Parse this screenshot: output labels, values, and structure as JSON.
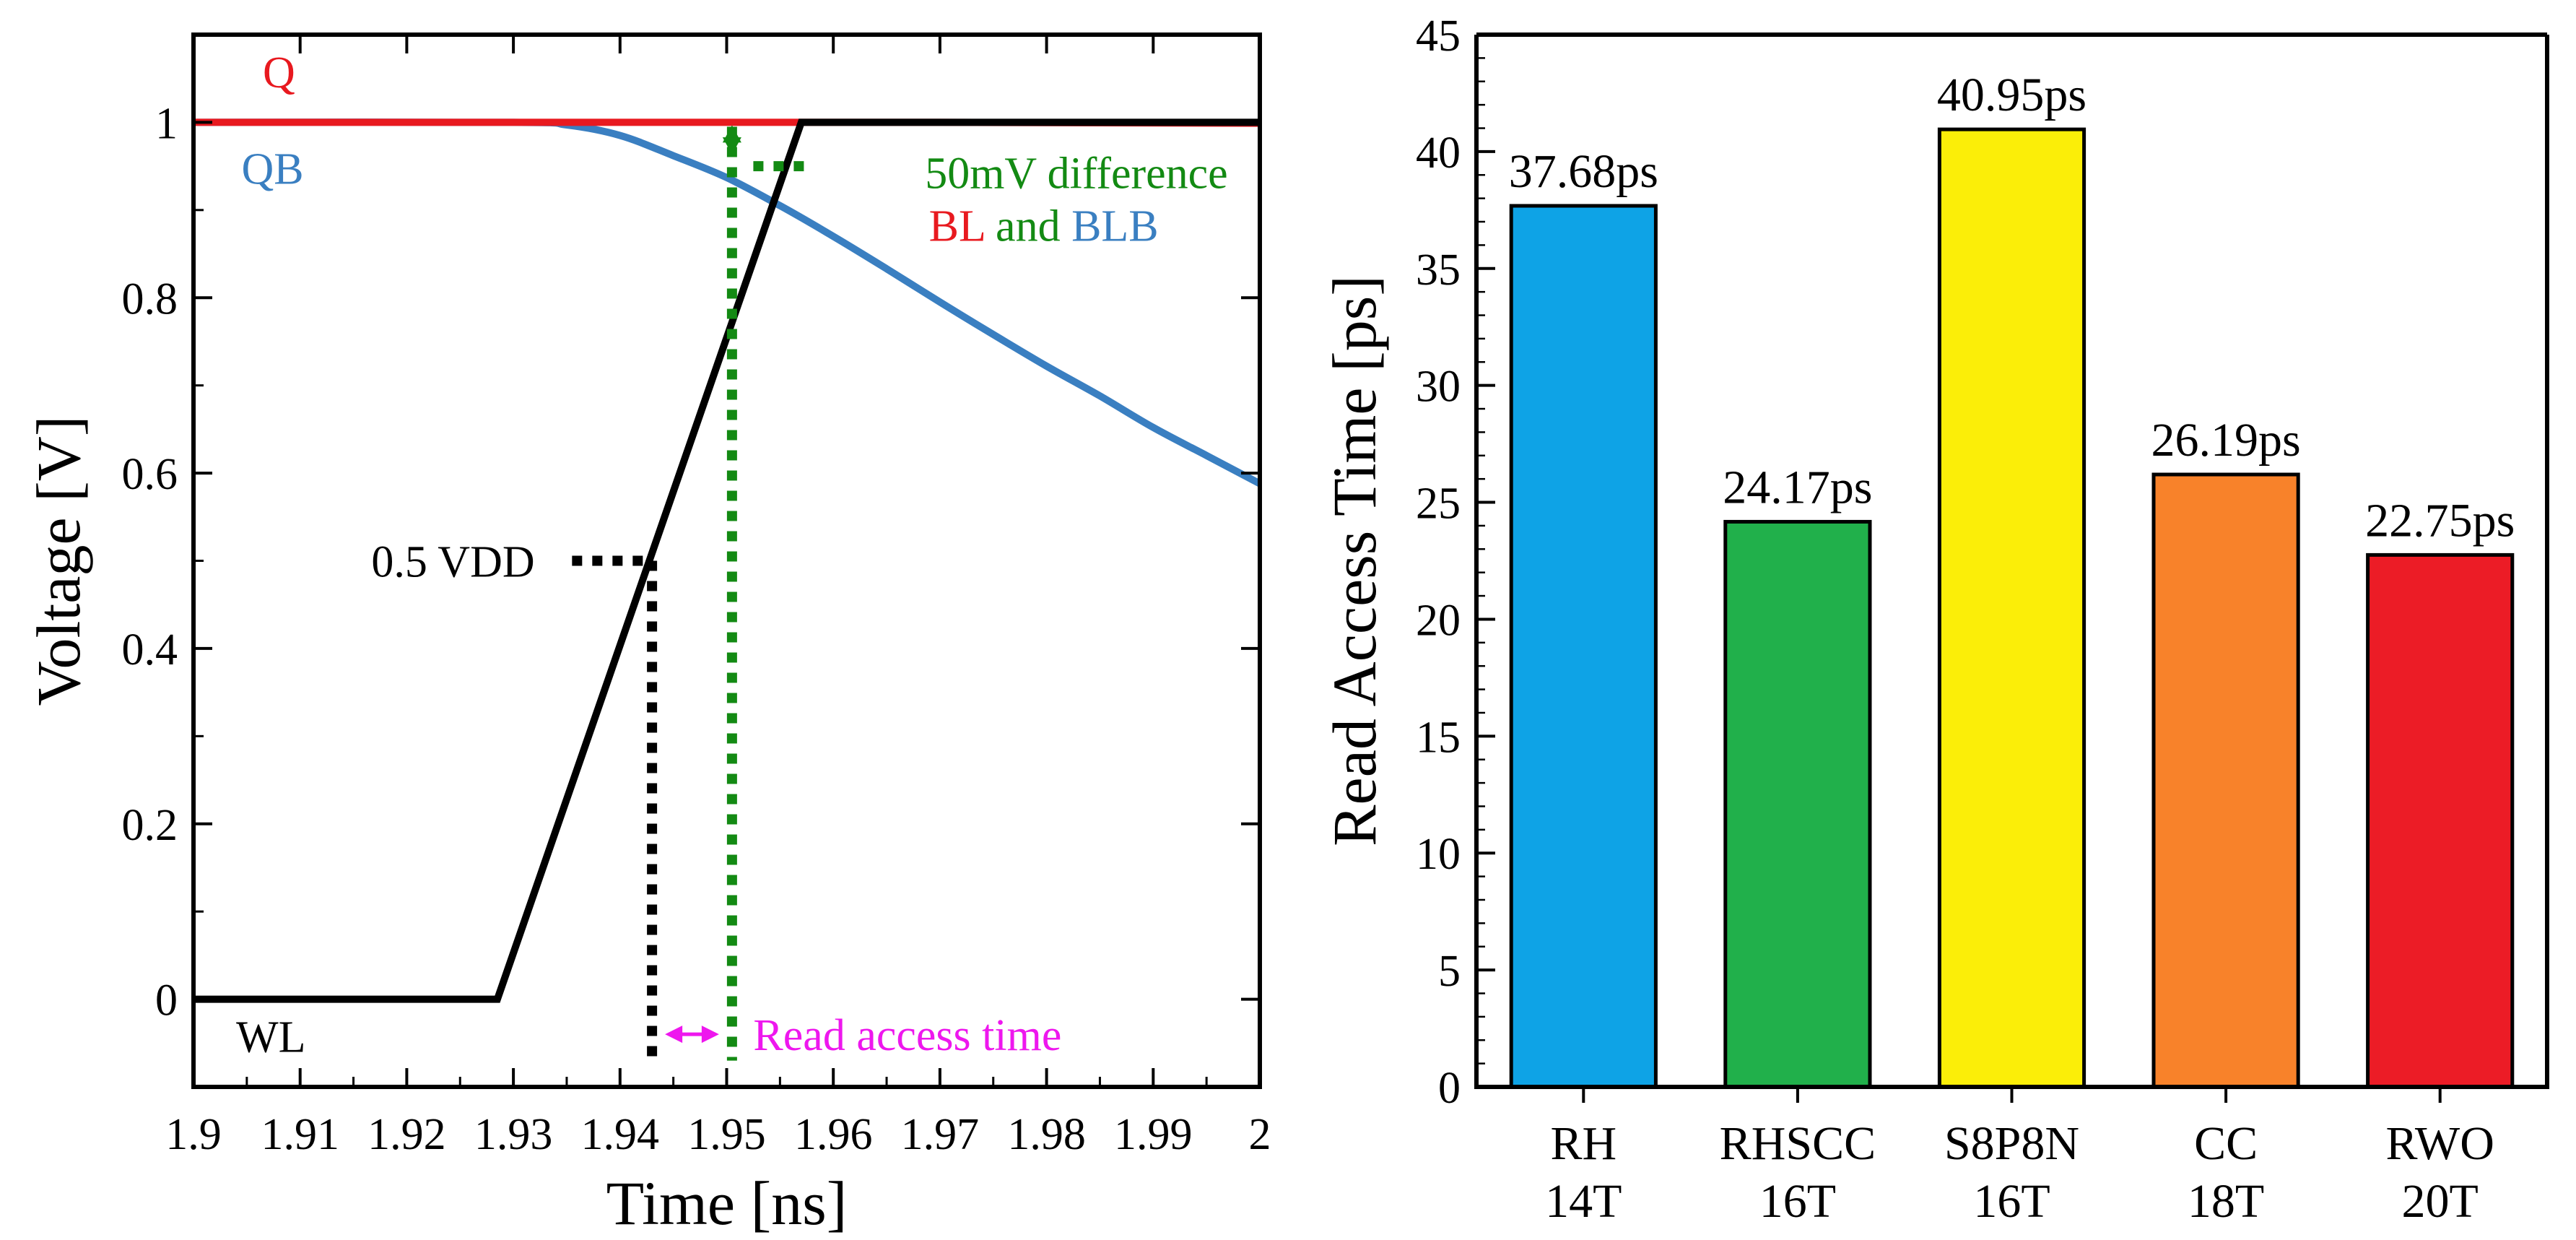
{
  "chart_data": [
    {
      "type": "line",
      "xlabel": "Time [ns]",
      "ylabel": "Voltage [V]",
      "xlim": [
        1.9,
        2.0
      ],
      "ylim": [
        -0.1,
        1.1
      ],
      "xticks": [
        1.9,
        1.91,
        1.92,
        1.93,
        1.94,
        1.95,
        1.96,
        1.97,
        1.98,
        1.99,
        2.0
      ],
      "xtick_labels": [
        "1.9",
        "1.91",
        "1.92",
        "1.93",
        "1.94",
        "1.95",
        "1.96",
        "1.97",
        "1.98",
        "1.99",
        "2"
      ],
      "yticks": [
        0,
        0.2,
        0.4,
        0.6,
        0.8,
        1.0
      ],
      "ytick_labels": [
        "0",
        "0.2",
        "0.4",
        "0.6",
        "0.8",
        "1"
      ],
      "series": [
        {
          "name": "Q",
          "color": "#e8191f",
          "points": [
            [
              1.9,
              1.0
            ],
            [
              1.95,
              1.0
            ],
            [
              1.97,
              1.0
            ],
            [
              2.0,
              0.999
            ]
          ]
        },
        {
          "name": "QB",
          "color": "#3a7fc1",
          "points": [
            [
              1.9,
              1.0
            ],
            [
              1.93,
              1.0
            ],
            [
              1.935,
              0.997
            ],
            [
              1.94,
              0.985
            ],
            [
              1.945,
              0.962
            ],
            [
              1.95,
              0.937
            ],
            [
              1.955,
              0.905
            ],
            [
              1.96,
              0.87
            ],
            [
              1.965,
              0.833
            ],
            [
              1.97,
              0.795
            ],
            [
              1.975,
              0.758
            ],
            [
              1.98,
              0.722
            ],
            [
              1.985,
              0.688
            ],
            [
              1.99,
              0.652
            ],
            [
              1.995,
              0.62
            ],
            [
              2.0,
              0.588
            ]
          ]
        },
        {
          "name": "WL",
          "color": "#000000",
          "points": [
            [
              1.9,
              0.0
            ],
            [
              1.9285,
              0.0
            ],
            [
              1.957,
              1.0
            ],
            [
              2.0,
              1.0
            ]
          ]
        }
      ],
      "markers": {
        "half_vdd_time": 1.943,
        "half_vdd_value": 0.5,
        "fifty_mv_time": 1.9505,
        "fifty_mv_value": 0.95
      },
      "annotations": {
        "half_vdd": "0.5 VDD",
        "fifty_mv": "50mV difference",
        "bl_label": "BL",
        "and_label": "and",
        "blb_label": "BLB",
        "read_access": "Read access time"
      },
      "annotation_colors": {
        "green": "#138a13",
        "magenta": "#ee17ee"
      }
    },
    {
      "type": "bar",
      "ylabel": "Read Access Time [ps]",
      "ylim": [
        0,
        45
      ],
      "yticks": [
        0,
        5,
        10,
        15,
        20,
        25,
        30,
        35,
        40,
        45
      ],
      "ytick_labels": [
        "0",
        "5",
        "10",
        "15",
        "20",
        "25",
        "30",
        "35",
        "40",
        "45"
      ],
      "categories": [
        {
          "line1": "RH",
          "line2": "14T"
        },
        {
          "line1": "RHSCC",
          "line2": "16T"
        },
        {
          "line1": "S8P8N",
          "line2": "16T"
        },
        {
          "line1": "CC",
          "line2": "18T"
        },
        {
          "line1": "RWO",
          "line2": "20T"
        }
      ],
      "values": [
        37.68,
        24.17,
        40.95,
        26.19,
        22.75
      ],
      "value_labels": [
        "37.68ps",
        "24.17ps",
        "40.95ps",
        "26.19ps",
        "22.75ps"
      ],
      "colors": [
        "#0ea3e6",
        "#21b04b",
        "#fbee08",
        "#f8822a",
        "#ec1c26"
      ]
    }
  ]
}
